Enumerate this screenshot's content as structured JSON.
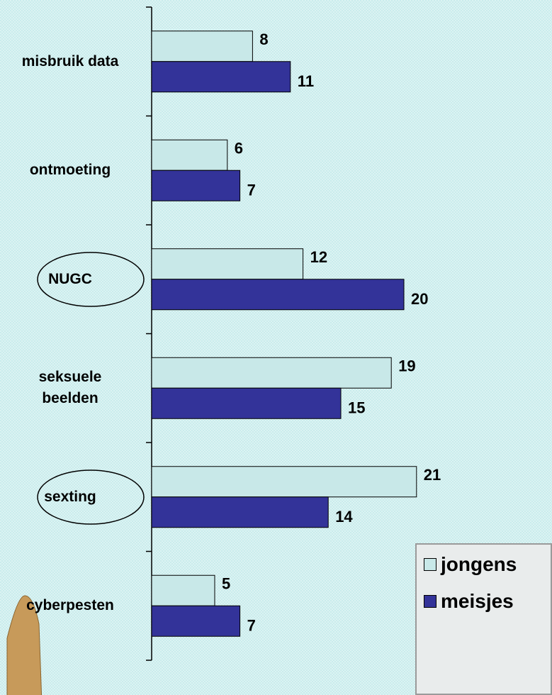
{
  "chart_data": {
    "type": "bar",
    "orientation": "horizontal",
    "categories": [
      "misbruik data",
      "ontmoeting",
      "NUGC",
      "seksuele beelden",
      "sexting",
      "cyberpesten"
    ],
    "series": [
      {
        "name": "jongens",
        "color": "#c8e8e8",
        "values": [
          8,
          6,
          12,
          19,
          21,
          5
        ]
      },
      {
        "name": "meisjes",
        "color": "#333399",
        "values": [
          11,
          7,
          20,
          15,
          14,
          7
        ]
      }
    ],
    "legend": "bottom-right"
  }
}
